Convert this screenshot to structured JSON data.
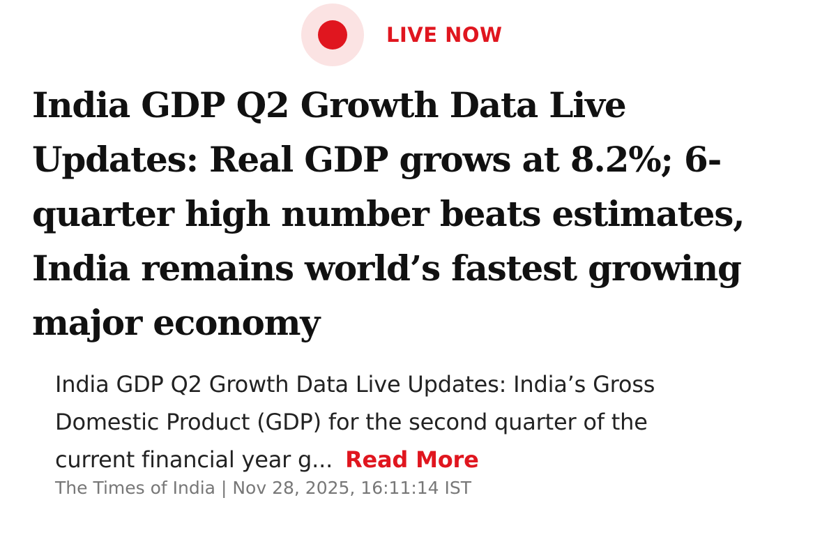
{
  "badge": {
    "label": "LIVE NOW",
    "color": "#e0161f"
  },
  "article": {
    "headline_lines": [
      "India GDP Q2 Growth Data Live",
      "Updates: Real GDP grows at 8.2%; 6-",
      "quarter high number beats estimates,",
      "India remains world’s fastest growing",
      "major economy"
    ],
    "summary_lines": [
      "India GDP Q2 Growth Data Live Updates: India’s Gross",
      "Domestic Product (GDP) for the second quarter of the",
      "current financial year g..."
    ],
    "read_more_label": "Read More",
    "source": "The Times of India",
    "separator": "|",
    "timestamp": "Nov 28, 2025, 16:11:14 IST"
  }
}
